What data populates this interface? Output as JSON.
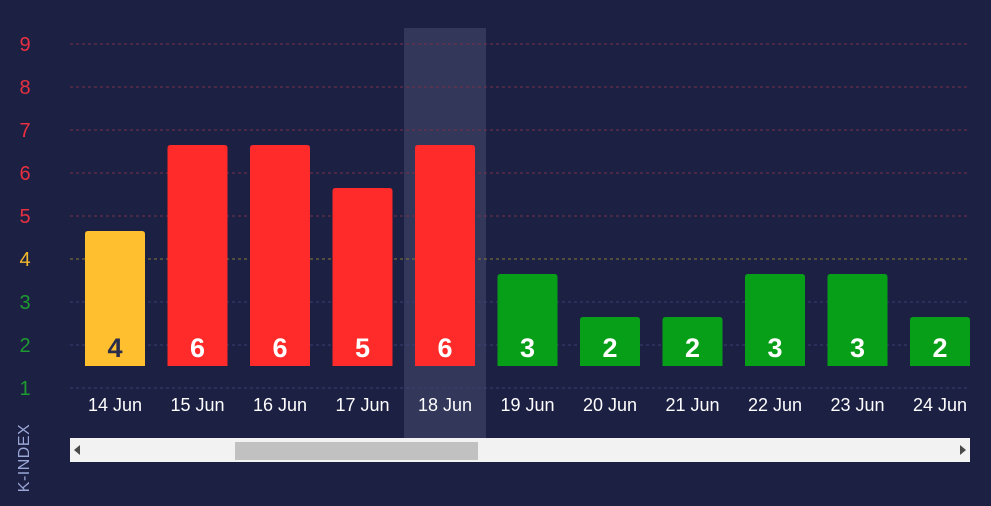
{
  "chart_data": {
    "type": "bar",
    "ylabel": "K-INDEX",
    "ylim": [
      1,
      9
    ],
    "y_ticks": [
      1,
      2,
      3,
      4,
      5,
      6,
      7,
      8,
      9
    ],
    "categories": [
      "14 Jun",
      "15 Jun",
      "16 Jun",
      "17 Jun",
      "18 Jun",
      "19 Jun",
      "20 Jun",
      "21 Jun",
      "22 Jun",
      "23 Jun",
      "24 Jun"
    ],
    "values": [
      4,
      6,
      6,
      5,
      6,
      3,
      2,
      2,
      3,
      3,
      2
    ],
    "highlighted_category": "18 Jun",
    "grid": true,
    "colors": {
      "background": "#1c2043",
      "low": "#079f18",
      "moderate": "#ffbf2f",
      "high": "#ff2a2a",
      "label_on_moderate": "#2a2e4a",
      "label_on_other": "#ffffff",
      "tick_low": "#1e9b30",
      "tick_moderate": "#f3b72b",
      "tick_high": "#e83040",
      "x_labels": "#ffffff",
      "highlight": "#33375a",
      "grid_low": "#3a4170",
      "grid_moderate": "#8a7a3a",
      "grid_high": "#7a3048"
    }
  },
  "scrollbar": {
    "left_icon": "arrow-left-icon",
    "right_icon": "arrow-right-icon",
    "thumb_position": 0.24
  }
}
